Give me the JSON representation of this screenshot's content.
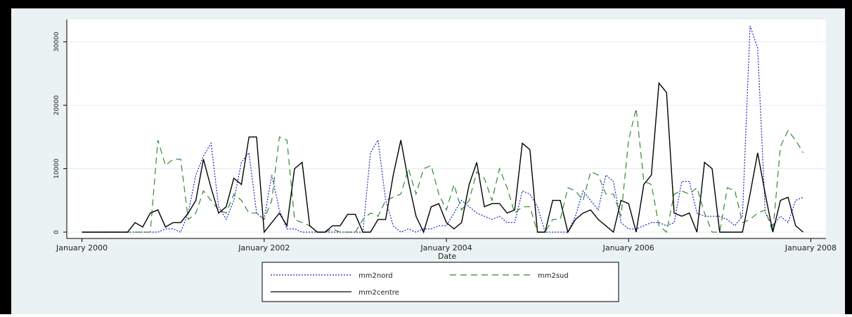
{
  "chart_data": {
    "type": "line",
    "x": [
      "2000-01",
      "2000-02",
      "2000-03",
      "2000-04",
      "2000-05",
      "2000-06",
      "2000-07",
      "2000-08",
      "2000-09",
      "2000-10",
      "2000-11",
      "2000-12",
      "2001-01",
      "2001-02",
      "2001-03",
      "2001-04",
      "2001-05",
      "2001-06",
      "2001-07",
      "2001-08",
      "2001-09",
      "2001-10",
      "2001-11",
      "2001-12",
      "2002-01",
      "2002-02",
      "2002-03",
      "2002-04",
      "2002-05",
      "2002-06",
      "2002-07",
      "2002-08",
      "2002-09",
      "2002-10",
      "2002-11",
      "2002-12",
      "2003-01",
      "2003-02",
      "2003-03",
      "2003-04",
      "2003-05",
      "2003-06",
      "2003-07",
      "2003-08",
      "2003-09",
      "2003-10",
      "2003-11",
      "2003-12",
      "2004-01",
      "2004-02",
      "2004-03",
      "2004-04",
      "2004-05",
      "2004-06",
      "2004-07",
      "2004-08",
      "2004-09",
      "2004-10",
      "2004-11",
      "2004-12",
      "2005-01",
      "2005-02",
      "2005-03",
      "2005-04",
      "2005-05",
      "2005-06",
      "2005-07",
      "2005-08",
      "2005-09",
      "2005-10",
      "2005-11",
      "2005-12",
      "2006-01",
      "2006-02",
      "2006-03",
      "2006-04",
      "2006-05",
      "2006-06",
      "2006-07",
      "2006-08",
      "2006-09",
      "2006-10",
      "2006-11",
      "2006-12",
      "2007-01",
      "2007-02",
      "2007-03",
      "2007-04",
      "2007-05",
      "2007-06",
      "2007-07",
      "2007-08",
      "2007-09",
      "2007-10",
      "2007-11",
      "2007-12"
    ],
    "series": [
      {
        "name": "mm2nord",
        "color": "#1f1fbf",
        "dash": "dotted",
        "values": [
          0,
          0,
          0,
          0,
          0,
          0,
          0,
          0,
          0,
          0,
          0,
          500,
          500,
          0,
          3000,
          9000,
          12000,
          14000,
          4000,
          2000,
          5000,
          11000,
          12500,
          3000,
          2000,
          9000,
          3500,
          500,
          500,
          0,
          0,
          0,
          0,
          0,
          0,
          0,
          0,
          0,
          12500,
          14500,
          5000,
          1000,
          0,
          500,
          0,
          500,
          500,
          1000,
          1000,
          3000,
          5000,
          4000,
          3000,
          2500,
          2000,
          2500,
          1500,
          1500,
          6500,
          6000,
          4000,
          0,
          0,
          0,
          0,
          2500,
          6500,
          5000,
          3500,
          9000,
          8000,
          1500,
          500,
          500,
          1000,
          1500,
          1500,
          1000,
          1500,
          8000,
          8000,
          3000,
          2500,
          2500,
          2500,
          2000,
          1000,
          2500,
          32500,
          29000,
          3000,
          1000,
          2500,
          1500,
          5000,
          5500
        ]
      },
      {
        "name": "mm2sud",
        "color": "#2e8b2e",
        "dash": "dashed",
        "values": [
          0,
          0,
          0,
          0,
          0,
          0,
          0,
          0,
          0,
          0,
          14500,
          10500,
          11500,
          11500,
          2000,
          3000,
          6500,
          5000,
          3500,
          3000,
          6000,
          5000,
          3000,
          3000,
          2000,
          5000,
          15000,
          14500,
          2000,
          1500,
          1000,
          0,
          0,
          500,
          0,
          0,
          0,
          2000,
          3000,
          2500,
          5000,
          5500,
          6000,
          10000,
          6000,
          10000,
          10500,
          6000,
          3500,
          7500,
          3500,
          5000,
          9500,
          8500,
          5000,
          10000,
          7000,
          3000,
          4000,
          4000,
          0,
          0,
          2000,
          2000,
          7000,
          6500,
          5000,
          9500,
          9000,
          6000,
          6000,
          2500,
          14500,
          19500,
          8000,
          7500,
          1000,
          0,
          6000,
          6500,
          6000,
          7000,
          3000,
          0,
          0,
          7000,
          6500,
          1500,
          2000,
          3000,
          3500,
          0,
          13500,
          16000,
          14500,
          12500
        ]
      },
      {
        "name": "mm2centre",
        "color": "#000000",
        "dash": "solid",
        "values": [
          0,
          0,
          0,
          0,
          0,
          0,
          0,
          1500,
          800,
          3000,
          3500,
          800,
          1500,
          1500,
          3000,
          5000,
          11500,
          7000,
          3000,
          4000,
          8500,
          7500,
          15000,
          15000,
          0,
          1500,
          3000,
          1000,
          10000,
          11000,
          1000,
          0,
          0,
          1000,
          1000,
          2800,
          2800,
          0,
          0,
          2000,
          2000,
          9000,
          14500,
          8000,
          2500,
          0,
          4000,
          4500,
          1500,
          500,
          1500,
          7500,
          11000,
          4000,
          4500,
          4500,
          3000,
          3500,
          14000,
          13000,
          0,
          0,
          5000,
          5000,
          0,
          2000,
          3000,
          3500,
          2000,
          1000,
          0,
          5000,
          4500,
          0,
          7500,
          9000,
          23500,
          22000,
          3000,
          2500,
          3000,
          0,
          11000,
          10000,
          0,
          0,
          0,
          0,
          6000,
          12500,
          6000,
          0,
          5000,
          5500,
          1000,
          0
        ]
      }
    ],
    "xlabel": "Date",
    "xlim": [
      "1999-11",
      "2008-03"
    ],
    "xticks": [
      {
        "value": "2000-01",
        "label": "January 2000"
      },
      {
        "value": "2002-01",
        "label": "January 2002"
      },
      {
        "value": "2004-01",
        "label": "January 2004"
      },
      {
        "value": "2006-01",
        "label": "January 2006"
      },
      {
        "value": "2008-01",
        "label": "January 2008"
      }
    ],
    "ylim": [
      -1000,
      33500
    ],
    "yticks": [
      0,
      10000,
      20000,
      30000
    ],
    "grid": true
  }
}
